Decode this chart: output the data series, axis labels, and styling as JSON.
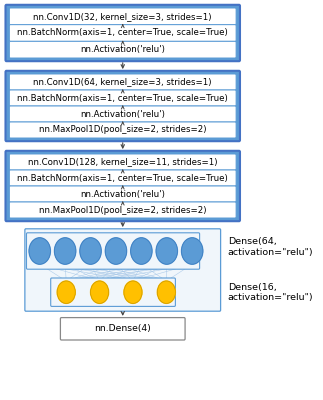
{
  "block1_layers": [
    "nn.Conv1D(32, kernel_size=3, strides=1)",
    "nn.BatchNorm(axis=1, center=True, scale=True)",
    "nn.Activation('relu')"
  ],
  "block2_layers": [
    "nn.Conv1D(64, kernel_size=3, strides=1)",
    "nn.BatchNorm(axis=1, center=True, scale=True)",
    "nn.Activation('relu')",
    "nn.MaxPool1D(pool_size=2, strides=2)"
  ],
  "block3_layers": [
    "nn.Conv1D(128, kernel_size=11, strides=1)",
    "nn.BatchNorm(axis=1, center=True, scale=True)",
    "nn.Activation('relu')",
    "nn.MaxPool1D(pool_size=2, strides=2)"
  ],
  "dense_labels": [
    "Dense(64,\nactivation=\"relu\")",
    "Dense(16,\nactivation=\"relu\")"
  ],
  "final_layer": "nn.Dense(4)",
  "block_bg_color": "#5B9BD5",
  "block_border_color": "#4472C4",
  "layer_bg_color": "#FFFFFF",
  "layer_border_color": "#5B9BD5",
  "arrow_color": "#444444",
  "blue_neuron_color": "#5B9BD5",
  "orange_neuron_color": "#FFC000",
  "conn_color": "#A8C8E8",
  "nn_box_bg": "#F0F6FB",
  "nn_box_border": "#5B9BD5",
  "text_color": "#000000",
  "font_size": 6.2,
  "label_font_size": 6.8
}
